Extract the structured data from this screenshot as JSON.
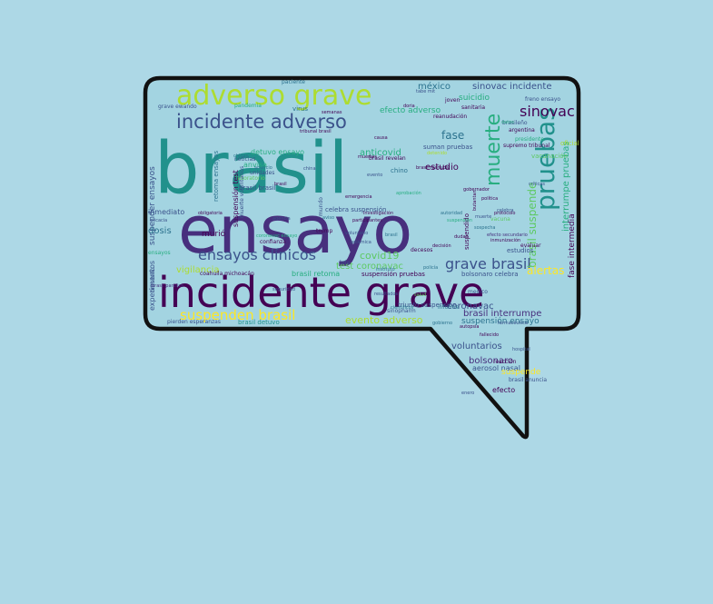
{
  "background_color": "#add8e6",
  "bubble": {
    "fill": "#a3d4e1",
    "stroke": "#111111"
  },
  "palette": [
    "#440154",
    "#472f7d",
    "#3b528b",
    "#2c728e",
    "#21918c",
    "#28ae80",
    "#5ec962",
    "#addc30",
    "#fde725"
  ],
  "words": [
    {
      "text": "brasil",
      "color": "#21918c"
    },
    {
      "text": "ensayo",
      "color": "#472f7d"
    },
    {
      "text": "incidente grave",
      "color": "#440154"
    },
    {
      "text": "adverso grave",
      "color": "#addc30"
    },
    {
      "text": "incidente adverso",
      "color": "#3b528b"
    },
    {
      "text": "pruebas",
      "color": "#21918c"
    },
    {
      "text": "muerte",
      "color": "#28ae80"
    },
    {
      "text": "sinovac",
      "color": "#440154"
    },
    {
      "text": "ensayos clínicos",
      "color": "#3b528b"
    },
    {
      "text": "grave brasil",
      "color": "#3b528b"
    },
    {
      "text": "suspenden brasil",
      "color": "#fde725"
    },
    {
      "text": "evento adverso",
      "color": "#addc30"
    },
    {
      "text": "sinovac incidente",
      "color": "#3b528b"
    },
    {
      "text": "méxico",
      "color": "#2c728e"
    },
    {
      "text": "suicidio",
      "color": "#28ae80"
    },
    {
      "text": "efecto adverso",
      "color": "#28ae80"
    },
    {
      "text": "fase",
      "color": "#2c728e"
    },
    {
      "text": "anticovid",
      "color": "#28ae80"
    },
    {
      "text": "estudio",
      "color": "#440154"
    },
    {
      "text": "covid19",
      "color": "#5ec962"
    },
    {
      "text": "test coronavac",
      "color": "#5ec962"
    },
    {
      "text": "coronavac",
      "color": "#3b528b"
    },
    {
      "text": "voluntarios",
      "color": "#3b528b"
    },
    {
      "text": "bolsonaro",
      "color": "#472f7d"
    },
    {
      "text": "aerosol nasal",
      "color": "#3b528b"
    },
    {
      "text": "efecto",
      "color": "#440154"
    },
    {
      "text": "brasil interrumpe",
      "color": "#472f7d"
    },
    {
      "text": "suspensión ensayo",
      "color": "#2c728e"
    },
    {
      "text": "interrumpe pruebas",
      "color": "#28ae80"
    },
    {
      "text": "suspender ensayos",
      "color": "#3b528b"
    },
    {
      "text": "dosis",
      "color": "#2c728e"
    },
    {
      "text": "murió",
      "color": "#440154"
    },
    {
      "text": "vigilancia",
      "color": "#addc30"
    },
    {
      "text": "brasil retoma",
      "color": "#28ae80"
    },
    {
      "text": "suspensión pruebas",
      "color": "#440154"
    },
    {
      "text": "bolsonaro celebra",
      "color": "#3b528b"
    },
    {
      "text": "detuvo ensayo",
      "color": "#28ae80"
    },
    {
      "text": "celebra suspensión",
      "color": "#3b528b"
    },
    {
      "text": "anvisa",
      "color": "#28ae80"
    },
    {
      "text": "chino",
      "color": "#2c728e"
    },
    {
      "text": "virus",
      "color": "#2c728e"
    },
    {
      "text": "brasil revelan",
      "color": "#440154"
    },
    {
      "text": "suman pruebas",
      "color": "#3b528b"
    },
    {
      "text": "inmediato",
      "color": "#3b528b"
    },
    {
      "text": "suspendido",
      "color": "#440154"
    },
    {
      "text": "brasil detuvo",
      "color": "#21918c"
    },
    {
      "text": "experimentos",
      "color": "#3b528b"
    },
    {
      "text": "brasileño",
      "color": "#3b528b"
    },
    {
      "text": "presidente",
      "color": "#28ae80"
    },
    {
      "text": "unidades",
      "color": "#3b528b"
    },
    {
      "text": "brasil brasil",
      "color": "#3b528b"
    },
    {
      "text": "fase intermedia",
      "color": "#440154"
    },
    {
      "text": "laboratorio",
      "color": "#5ec962"
    },
    {
      "text": "suspensión test",
      "color": "#440154"
    },
    {
      "text": "retoma ensayos",
      "color": "#2c728e"
    },
    {
      "text": "muerte voluntarios",
      "color": "#3b528b"
    },
    {
      "text": "brasil suspende",
      "color": "#5ec962"
    },
    {
      "text": "vacunación",
      "color": "#5ec962"
    },
    {
      "text": "oficial",
      "color": "#addc30"
    },
    {
      "text": "alertas",
      "color": "#fde725"
    },
    {
      "text": "suspende",
      "color": "#fde725"
    },
    {
      "text": "medico",
      "color": "#3b528b"
    },
    {
      "text": "detenido",
      "color": "#addc30"
    },
    {
      "text": "reanudación",
      "color": "#440154"
    },
    {
      "text": "pandemia",
      "color": "#28ae80"
    },
    {
      "text": "coahuila michoacán",
      "color": "#440154"
    },
    {
      "text": "supremo tribunal",
      "color": "#440154"
    },
    {
      "text": "freno ensayo",
      "color": "#3b528b"
    },
    {
      "text": "pierden esperanzas",
      "color": "#3b528b"
    },
    {
      "text": "grave ewando",
      "color": "#3b528b"
    },
    {
      "text": "tribunal brasil",
      "color": "#440154"
    },
    {
      "text": "triunfo suspensión",
      "color": "#3b528b"
    },
    {
      "text": "coronavac ensayo",
      "color": "#28ae80"
    },
    {
      "text": "obligatoria",
      "color": "#440154"
    },
    {
      "text": "confianza",
      "color": "#440154"
    },
    {
      "text": "aviso",
      "color": "#2c728e"
    },
    {
      "text": "chinas",
      "color": "#2c728e"
    },
    {
      "text": "argentina",
      "color": "#440154"
    },
    {
      "text": "mundo",
      "color": "#3b528b"
    },
    {
      "text": "ensayos",
      "color": "#28ae80"
    },
    {
      "text": "eficacia",
      "color": "#3b528b"
    },
    {
      "text": "brasil paraliza",
      "color": "#472f7d"
    },
    {
      "text": "decesos",
      "color": "#440154"
    },
    {
      "text": "gobierno",
      "color": "#2c728e"
    },
    {
      "text": "sinopharm",
      "color": "#3b528b"
    },
    {
      "text": "brasileño",
      "color": "#3b528b"
    },
    {
      "text": "evaluar",
      "color": "#440154"
    },
    {
      "text": "vacuna",
      "color": "#5ec962"
    },
    {
      "text": "china",
      "color": "#3b528b"
    },
    {
      "text": "causa",
      "color": "#440154"
    },
    {
      "text": "muerte",
      "color": "#3b528b"
    },
    {
      "text": "estudios",
      "color": "#3b528b"
    },
    {
      "text": "tabe mit",
      "color": "#3b528b"
    },
    {
      "text": "trump",
      "color": "#440154"
    },
    {
      "text": "sospecha",
      "color": "#2c728e"
    },
    {
      "text": "reacción",
      "color": "#440154"
    },
    {
      "text": "suspensión",
      "color": "#28ae80"
    },
    {
      "text": "joven",
      "color": "#440154"
    },
    {
      "text": "efecto secundario",
      "color": "#472f7d"
    },
    {
      "text": "brasil anuncia",
      "color": "#3b528b"
    },
    {
      "text": "salud",
      "color": "#5ec962"
    },
    {
      "text": "seguridad",
      "color": "#3b528b"
    },
    {
      "text": "datos",
      "color": "#28ae80"
    },
    {
      "text": "autoridad",
      "color": "#2c728e"
    },
    {
      "text": "sanitaria",
      "color": "#440154"
    },
    {
      "text": "agencia",
      "color": "#3b528b"
    },
    {
      "text": "brasil",
      "color": "#440154"
    },
    {
      "text": "investigación",
      "color": "#440154"
    },
    {
      "text": "noticias",
      "color": "#3b528b"
    },
    {
      "text": "brasil reanuda",
      "color": "#440154"
    },
    {
      "text": "instituto",
      "color": "#2c728e"
    },
    {
      "text": "butantan",
      "color": "#440154"
    },
    {
      "text": "farmacéutica",
      "color": "#3b528b"
    },
    {
      "text": "paciente",
      "color": "#2c728e"
    },
    {
      "text": "doria",
      "color": "#440154"
    },
    {
      "text": "voluntario",
      "color": "#3b528b"
    },
    {
      "text": "fallecido",
      "color": "#440154"
    },
    {
      "text": "policía",
      "color": "#2c728e"
    },
    {
      "text": "emergencia",
      "color": "#440154"
    },
    {
      "text": "resultados",
      "color": "#3b528b"
    },
    {
      "text": "aprobación",
      "color": "#28ae80"
    },
    {
      "text": "inmunización",
      "color": "#440154"
    },
    {
      "text": "lote",
      "color": "#3b528b"
    },
    {
      "text": "protocolo",
      "color": "#440154"
    },
    {
      "text": "científicos",
      "color": "#2c728e"
    },
    {
      "text": "muertes",
      "color": "#440154"
    },
    {
      "text": "hospital",
      "color": "#3b528b"
    },
    {
      "text": "autopsia",
      "color": "#440154"
    },
    {
      "text": "informe",
      "color": "#2c728e"
    },
    {
      "text": "evento",
      "color": "#3b528b"
    },
    {
      "text": "dudas",
      "color": "#440154"
    },
    {
      "text": "polémica",
      "color": "#3b528b"
    },
    {
      "text": "política",
      "color": "#440154"
    },
    {
      "text": "brasil",
      "color": "#2c728e"
    },
    {
      "text": "participantes",
      "color": "#440154"
    },
    {
      "text": "enero",
      "color": "#3b528b"
    },
    {
      "text": "semanas",
      "color": "#440154"
    },
    {
      "text": "anuncio",
      "color": "#2c728e"
    },
    {
      "text": "decisión",
      "color": "#440154"
    },
    {
      "text": "críticas",
      "color": "#3b528b"
    },
    {
      "text": "gobernador",
      "color": "#440154"
    },
    {
      "text": "celebra",
      "color": "#3b528b"
    }
  ]
}
